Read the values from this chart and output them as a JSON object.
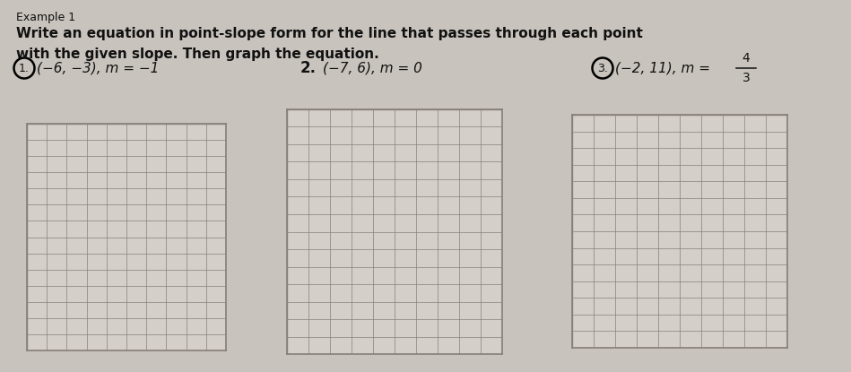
{
  "title_line1": "Example 1",
  "title_line2": "Write an equation in point-slope form for the line that passes through each point",
  "title_line3": "with the given slope. Then graph the equation.",
  "problem1_text": "(−6, −3), m = −1",
  "problem2_num": "2.",
  "problem2_text": "(−7, 6), m = 0",
  "problem3_text": "(−2, 11), m = ",
  "problem3_frac_num": "4",
  "problem3_frac_den": "3",
  "bg_color": "#c8c3bc",
  "grid_color": "#888078",
  "grid_bg": "#d4cfc9",
  "text_color": "#111111",
  "num_cols": 10,
  "num_rows": 14,
  "title1_fontsize": 9,
  "title2_fontsize": 11,
  "prob_fontsize": 11
}
